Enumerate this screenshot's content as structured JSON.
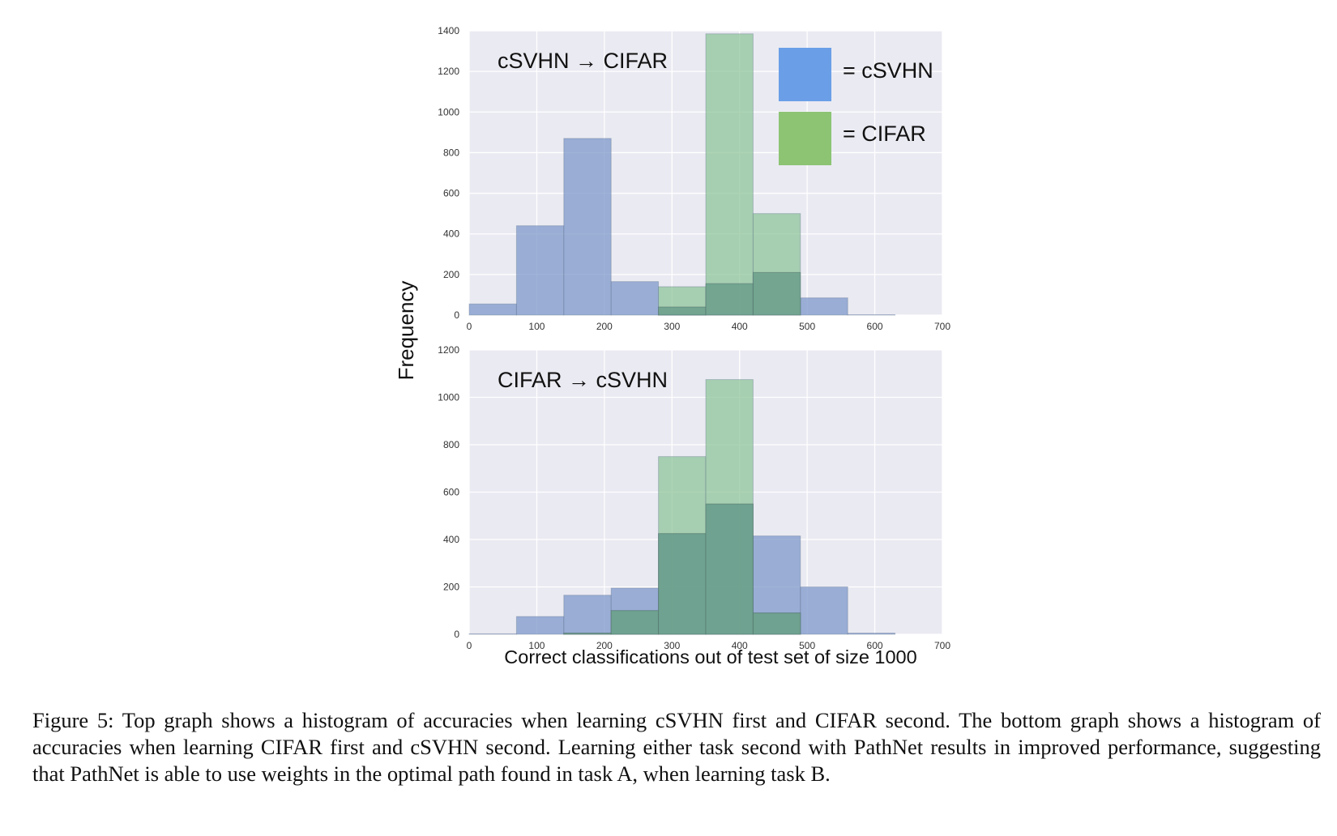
{
  "figure": {
    "ylabel": "Frequency",
    "xlabel": "Correct classifications out of test set of size 1000",
    "legend": [
      {
        "label": "= cSVHN",
        "color": "#6a9fe8"
      },
      {
        "label": "= CIFAR",
        "color": "#8cc474"
      }
    ],
    "caption": "Figure 5: Top graph shows a histogram of accuracies when learning cSVHN first and CIFAR second. The bottom graph shows a histogram of accuracies when learning CIFAR first and cSVHN second. Learning either task second with PathNet results in improved performance, suggesting that PathNet is able to use weights in the optimal path found in task A, when learning task B."
  },
  "chart_data": [
    {
      "type": "bar",
      "title": "cSVHN → CIFAR",
      "xlim": [
        0,
        700
      ],
      "ylim": [
        0,
        1400
      ],
      "xticks": [
        0,
        100,
        200,
        300,
        400,
        500,
        600,
        700
      ],
      "yticks": [
        0,
        200,
        400,
        600,
        800,
        1000,
        1200,
        1400
      ],
      "bin_edges": [
        0,
        70,
        140,
        210,
        280,
        350,
        420,
        490,
        560,
        630
      ],
      "legend_position": "top-right",
      "grid": true,
      "series": [
        {
          "name": "cSVHN",
          "color": "#7a96c9",
          "values": [
            55,
            440,
            870,
            165,
            5,
            0,
            0,
            85,
            2
          ]
        },
        {
          "name": "CIFAR",
          "color": "#8cc497",
          "values": [
            0,
            0,
            0,
            0,
            140,
            1385,
            500,
            0,
            0
          ]
        }
      ],
      "overlap": [
        0,
        0,
        0,
        0,
        40,
        155,
        210,
        0,
        0
      ]
    },
    {
      "type": "bar",
      "title": "CIFAR → cSVHN",
      "xlim": [
        0,
        700
      ],
      "ylim": [
        0,
        1200
      ],
      "xticks": [
        0,
        100,
        200,
        300,
        400,
        500,
        600,
        700
      ],
      "yticks": [
        0,
        200,
        400,
        600,
        800,
        1000,
        1200
      ],
      "bin_edges": [
        0,
        70,
        140,
        210,
        280,
        350,
        420,
        490,
        560,
        630
      ],
      "grid": true,
      "series": [
        {
          "name": "cSVHN",
          "color": "#7a96c9",
          "values": [
            2,
            75,
            165,
            195,
            425,
            550,
            415,
            200,
            5
          ]
        },
        {
          "name": "CIFAR",
          "color": "#8cc497",
          "values": [
            0,
            0,
            5,
            100,
            750,
            1075,
            90,
            0,
            0
          ]
        }
      ],
      "overlap": [
        0,
        0,
        5,
        100,
        425,
        550,
        90,
        0,
        0
      ]
    }
  ]
}
